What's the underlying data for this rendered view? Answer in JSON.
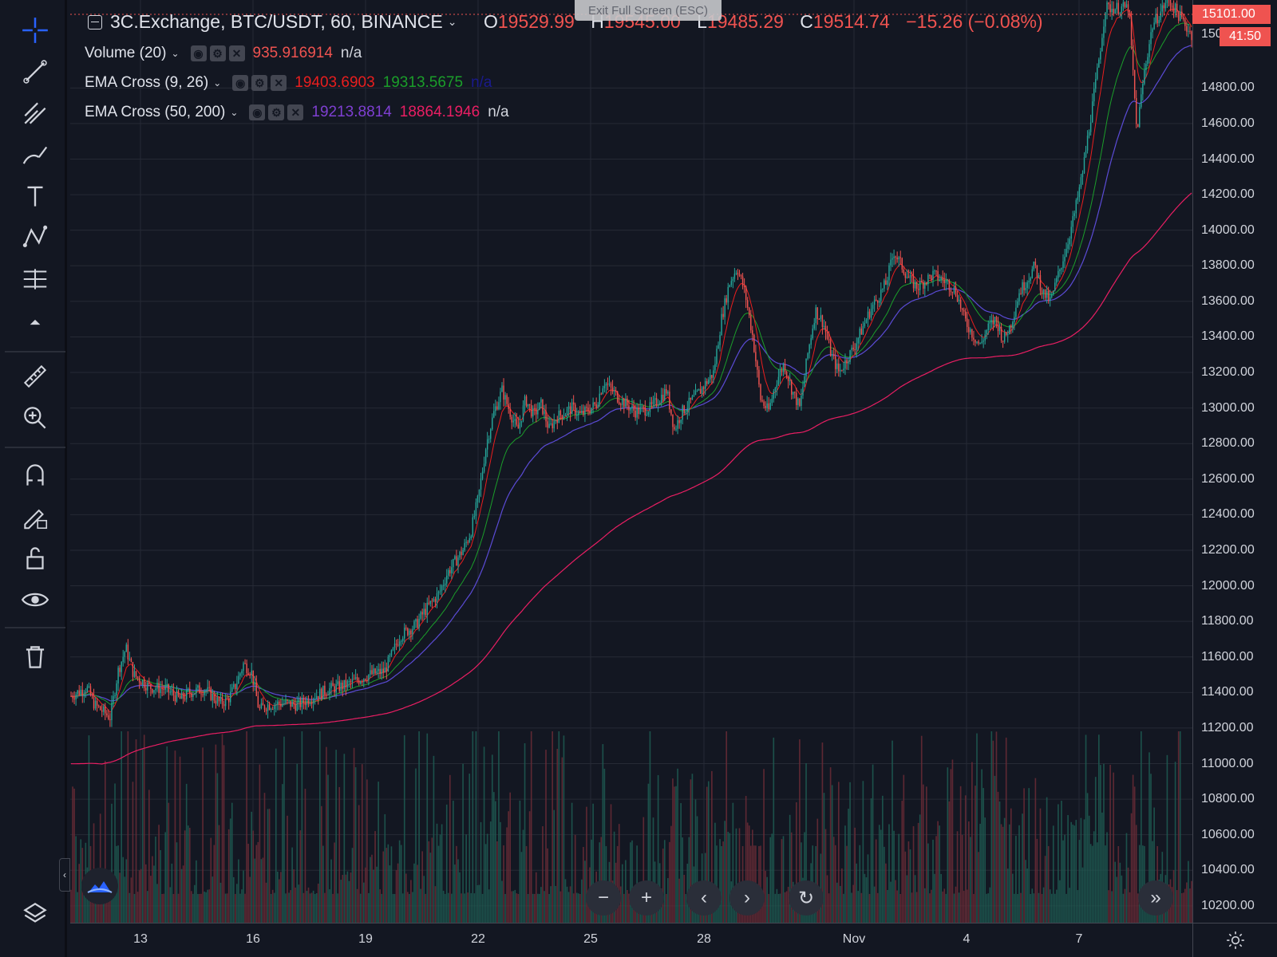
{
  "window": {
    "exit_fullscreen": "Exit Full Screen (ESC)"
  },
  "header": {
    "symbol_title": "3C.Exchange, BTC/USDT, 60, BINANCE",
    "ohlc": {
      "o_label": "O",
      "o_value": "19529.99",
      "h_label": "H",
      "h_value": "19545.00",
      "l_label": "L",
      "l_value": "19485.29",
      "c_label": "C",
      "c_value": "19514.74",
      "change": "−15.26 (−0.08%)"
    }
  },
  "indicators": [
    {
      "name": "Volume (20)",
      "values": [
        "935.916914",
        "n/a"
      ],
      "colors": [
        "#ef5350",
        "#d1d4dc"
      ]
    },
    {
      "name": "EMA Cross (9, 26)",
      "values": [
        "19403.6903",
        "19313.5675",
        "n/a"
      ],
      "colors": [
        "#e91e1e",
        "#1b9e2a",
        "#1a1a8c"
      ]
    },
    {
      "name": "EMA Cross (50, 200)",
      "values": [
        "19213.8814",
        "18864.1946",
        "n/a"
      ],
      "colors": [
        "#7e3fd1",
        "#e91e63",
        "#d1d4dc"
      ]
    }
  ],
  "price_axis": {
    "labels": [
      "14800.00",
      "14600.00",
      "14400.00",
      "14200.00",
      "14000.00",
      "13800.00",
      "13600.00",
      "13400.00",
      "13200.00",
      "13000.00",
      "12800.00",
      "12600.00",
      "12400.00",
      "12200.00",
      "12000.00",
      "11800.00",
      "11600.00",
      "11400.00",
      "11200.00",
      "11000.00",
      "10800.00",
      "10600.00",
      "10400.00",
      "10200.00"
    ],
    "current_price": "15101.00",
    "countdown": "41:50",
    "partial_label": "150"
  },
  "time_axis": {
    "labels": [
      "13",
      "16",
      "19",
      "22",
      "25",
      "28",
      "Nov",
      "4",
      "7"
    ]
  },
  "toolbar": {
    "items": [
      "crosshair-icon",
      "trend-line-icon",
      "pitchfork-icon",
      "brush-icon",
      "text-icon",
      "pattern-icon",
      "prediction-icon",
      "collapse-up-icon",
      "ruler-icon",
      "zoom-in-icon",
      "magnet-icon",
      "lock-drawing-icon",
      "unlock-icon",
      "eye-icon",
      "trash-icon"
    ]
  },
  "nav_buttons": [
    "minus",
    "plus",
    "chevron-left",
    "chevron-right",
    "reset",
    "double-chevron-right"
  ],
  "colors": {
    "background": "#131722",
    "up": "#26a69a",
    "down": "#ef5350",
    "ema9": "#e91e1e",
    "ema26": "#1b9e2a",
    "ema50": "#5b4bd6",
    "ema200": "#e91e63",
    "grid": "#262a35"
  },
  "chart_data": {
    "type": "candlestick",
    "timeframe": "60",
    "x_ticks": [
      "13",
      "16",
      "19",
      "22",
      "25",
      "28",
      "Nov",
      "4",
      "7"
    ],
    "ylim": [
      10150,
      15250
    ],
    "price_path": [
      [
        0,
        11380
      ],
      [
        2,
        11430
      ],
      [
        3,
        11330
      ],
      [
        5,
        11260
      ],
      [
        6,
        11520
      ],
      [
        7,
        11650
      ],
      [
        8,
        11500
      ],
      [
        10,
        11430
      ],
      [
        12,
        11420
      ],
      [
        14,
        11360
      ],
      [
        15,
        11400
      ],
      [
        17,
        11420
      ],
      [
        19,
        11340
      ],
      [
        20,
        11360
      ],
      [
        21,
        11440
      ],
      [
        22,
        11560
      ],
      [
        23,
        11520
      ],
      [
        24,
        11300
      ],
      [
        25,
        11330
      ],
      [
        27,
        11340
      ],
      [
        29,
        11330
      ],
      [
        31,
        11380
      ],
      [
        33,
        11420
      ],
      [
        35,
        11440
      ],
      [
        37,
        11480
      ],
      [
        38,
        11500
      ],
      [
        40,
        11520
      ],
      [
        41,
        11620
      ],
      [
        42,
        11720
      ],
      [
        44,
        11780
      ],
      [
        45,
        11850
      ],
      [
        47,
        11960
      ],
      [
        48,
        12070
      ],
      [
        50,
        12200
      ],
      [
        51,
        12300
      ],
      [
        52,
        12500
      ],
      [
        53,
        12800
      ],
      [
        54,
        12980
      ],
      [
        55,
        13100
      ],
      [
        56,
        12980
      ],
      [
        57,
        12870
      ],
      [
        58,
        13050
      ],
      [
        59,
        12960
      ],
      [
        60,
        13020
      ],
      [
        61,
        12880
      ],
      [
        62,
        12950
      ],
      [
        64,
        13000
      ],
      [
        65,
        12960
      ],
      [
        67,
        13020
      ],
      [
        68,
        13150
      ],
      [
        70,
        13050
      ],
      [
        72,
        12980
      ],
      [
        74,
        13000
      ],
      [
        76,
        13100
      ],
      [
        77,
        12880
      ],
      [
        78,
        12980
      ],
      [
        80,
        13080
      ],
      [
        82,
        13200
      ],
      [
        83,
        13500
      ],
      [
        84,
        13700
      ],
      [
        85,
        13790
      ],
      [
        86,
        13650
      ],
      [
        87,
        13400
      ],
      [
        88,
        13050
      ],
      [
        89,
        12980
      ],
      [
        90,
        13150
      ],
      [
        91,
        13250
      ],
      [
        92,
        13100
      ],
      [
        93,
        13000
      ],
      [
        94,
        13300
      ],
      [
        95,
        13550
      ],
      [
        96,
        13480
      ],
      [
        97,
        13300
      ],
      [
        98,
        13200
      ],
      [
        100,
        13350
      ],
      [
        102,
        13550
      ],
      [
        104,
        13700
      ],
      [
        105,
        13880
      ],
      [
        106,
        13800
      ],
      [
        107,
        13720
      ],
      [
        108,
        13680
      ],
      [
        110,
        13750
      ],
      [
        112,
        13700
      ],
      [
        113,
        13650
      ],
      [
        114,
        13500
      ],
      [
        115,
        13420
      ],
      [
        116,
        13350
      ],
      [
        117,
        13450
      ],
      [
        118,
        13500
      ],
      [
        119,
        13380
      ],
      [
        120,
        13480
      ],
      [
        121,
        13650
      ],
      [
        122,
        13720
      ],
      [
        123,
        13800
      ],
      [
        124,
        13650
      ],
      [
        125,
        13600
      ],
      [
        126,
        13750
      ],
      [
        127,
        13900
      ],
      [
        128,
        14080
      ],
      [
        129,
        14300
      ],
      [
        130,
        14600
      ],
      [
        131,
        14900
      ],
      [
        132,
        15250
      ],
      [
        135,
        15250
      ],
      [
        136,
        14550
      ],
      [
        137,
        14900
      ],
      [
        138,
        15150
      ],
      [
        140,
        15300
      ],
      [
        143,
        15101
      ]
    ],
    "volume_hint": "volume histogram bars along bottom of chart"
  }
}
